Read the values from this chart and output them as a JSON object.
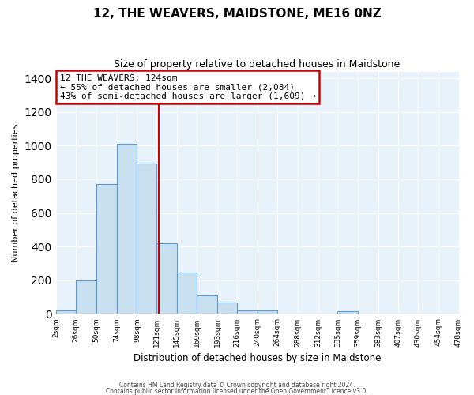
{
  "title": "12, THE WEAVERS, MAIDSTONE, ME16 0NZ",
  "subtitle": "Size of property relative to detached houses in Maidstone",
  "xlabel": "Distribution of detached houses by size in Maidstone",
  "ylabel": "Number of detached properties",
  "bar_color": "#c8dff0",
  "bar_edge_color": "#5b9bd5",
  "background_color": "#ffffff",
  "plot_bg_color": "#e8f2fb",
  "grid_color": "#c0d8ee",
  "bin_edges": [
    2,
    26,
    50,
    74,
    98,
    121,
    145,
    169,
    193,
    216,
    240,
    264,
    288,
    312,
    335,
    359,
    383,
    407,
    430,
    454,
    478
  ],
  "counts": [
    20,
    200,
    770,
    1010,
    895,
    420,
    245,
    110,
    70,
    22,
    20,
    0,
    0,
    0,
    18,
    0,
    0,
    0,
    0,
    0
  ],
  "tick_labels": [
    "2sqm",
    "26sqm",
    "50sqm",
    "74sqm",
    "98sqm",
    "121sqm",
    "145sqm",
    "169sqm",
    "193sqm",
    "216sqm",
    "240sqm",
    "264sqm",
    "288sqm",
    "312sqm",
    "335sqm",
    "359sqm",
    "383sqm",
    "407sqm",
    "430sqm",
    "454sqm",
    "478sqm"
  ],
  "property_line_x": 124,
  "annotation_title": "12 THE WEAVERS: 124sqm",
  "annotation_line1": "← 55% of detached houses are smaller (2,084)",
  "annotation_line2": "43% of semi-detached houses are larger (1,609) →",
  "annotation_box_color": "#ffffff",
  "annotation_border_color": "#cc0000",
  "vline_color": "#cc0000",
  "ylim": [
    0,
    1440
  ],
  "footer1": "Contains HM Land Registry data © Crown copyright and database right 2024.",
  "footer2": "Contains public sector information licensed under the Open Government Licence v3.0."
}
